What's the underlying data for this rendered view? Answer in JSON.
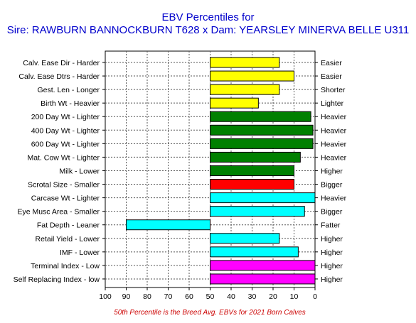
{
  "chart_data": {
    "type": "bar",
    "orientation": "horizontal",
    "title": "EBV Percentiles for",
    "subtitle": "Sire: RAWBURN BANNOCKBURN T628 x Dam: YEARSLEY MINERVA BELLE U311",
    "footnote": "50th Percentile is the Breed Avg. EBVs for 2021 Born Calves",
    "baseline": 50,
    "xlim": [
      100,
      0
    ],
    "x_ticks": [
      "100",
      "90",
      "80",
      "70",
      "60",
      "50",
      "40",
      "30",
      "20",
      "10",
      "0"
    ],
    "grid": true,
    "categories": [
      {
        "left": "Calv. Ease Dir - Harder",
        "right": "Easier"
      },
      {
        "left": "Calv. Ease Dtrs - Harder",
        "right": "Easier"
      },
      {
        "left": "Gest. Len - Longer",
        "right": "Shorter"
      },
      {
        "left": "Birth Wt - Heavier",
        "right": "Lighter"
      },
      {
        "left": "200 Day Wt - Lighter",
        "right": "Heavier"
      },
      {
        "left": "400 Day Wt - Lighter",
        "right": "Heavier"
      },
      {
        "left": "600 Day Wt - Lighter",
        "right": "Heavier"
      },
      {
        "left": "Mat. Cow Wt - Lighter",
        "right": "Heavier"
      },
      {
        "left": "Milk - Lower",
        "right": "Higher"
      },
      {
        "left": "Scrotal Size - Smaller",
        "right": "Bigger"
      },
      {
        "left": "Carcase Wt - Lighter",
        "right": "Heavier"
      },
      {
        "left": "Eye Musc Area - Smaller",
        "right": "Bigger"
      },
      {
        "left": "Fat Depth - Leaner",
        "right": "Fatter"
      },
      {
        "left": "Retail Yield - Lower",
        "right": "Higher"
      },
      {
        "left": "IMF - Lower",
        "right": "Higher"
      },
      {
        "left": "Terminal Index - Low",
        "right": "Higher"
      },
      {
        "left": "Self Replacing Index - low",
        "right": "Higher"
      }
    ],
    "values": [
      17,
      10,
      17,
      27,
      2,
      1,
      1,
      7,
      10,
      10,
      0,
      5,
      90,
      17,
      8,
      0,
      0
    ],
    "colors": [
      "#ffff00",
      "#ffff00",
      "#ffff00",
      "#ffff00",
      "#008000",
      "#008000",
      "#008000",
      "#008000",
      "#008000",
      "#ff0000",
      "#00ffff",
      "#00ffff",
      "#00ffff",
      "#00ffff",
      "#00ffff",
      "#ff00ff",
      "#ff00ff"
    ]
  }
}
